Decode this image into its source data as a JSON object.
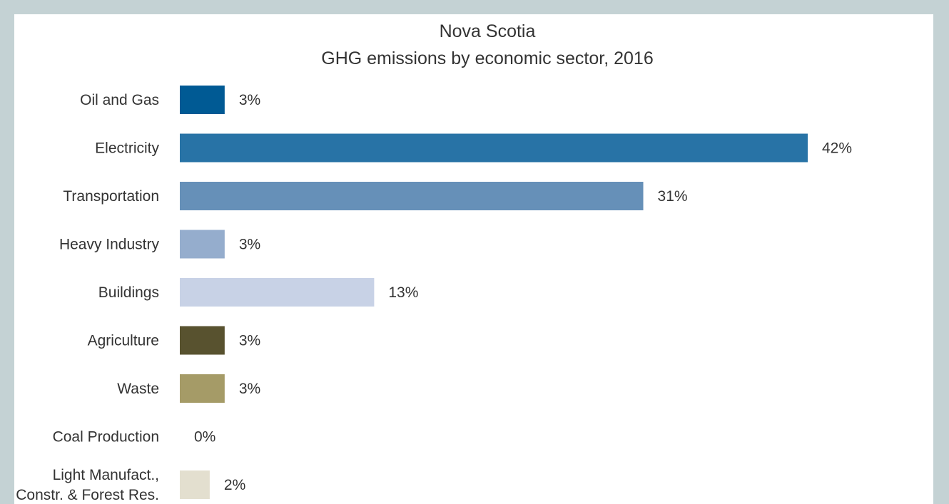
{
  "chart_data": {
    "type": "bar",
    "orientation": "horizontal",
    "title": "Nova Scotia",
    "subtitle": "GHG emissions by economic sector, 2016",
    "categories": [
      "Oil and Gas",
      "Electricity",
      "Transportation",
      "Heavy Industry",
      "Buildings",
      "Agriculture",
      "Waste",
      "Coal Production",
      "Light Manufact., Constr. & Forest Res."
    ],
    "category_lines": [
      [
        "Oil and Gas"
      ],
      [
        "Electricity"
      ],
      [
        "Transportation"
      ],
      [
        "Heavy Industry"
      ],
      [
        "Buildings"
      ],
      [
        "Agriculture"
      ],
      [
        "Waste"
      ],
      [
        "Coal Production"
      ],
      [
        "Light Manufact.,",
        "Constr. & Forest Res."
      ]
    ],
    "values": [
      3,
      42,
      31,
      3,
      13,
      3,
      3,
      0,
      2
    ],
    "value_labels": [
      "3%",
      "42%",
      "31%",
      "3%",
      "13%",
      "3%",
      "3%",
      "0%",
      "2%"
    ],
    "colors": [
      "#005a94",
      "#2873a6",
      "#6690b8",
      "#95adcd",
      "#c8d2e6",
      "#58522f",
      "#a59b67",
      "#d6d2be",
      "#e3dfcf"
    ],
    "xlim": [
      0,
      42
    ],
    "grid": false,
    "legend": "none"
  }
}
